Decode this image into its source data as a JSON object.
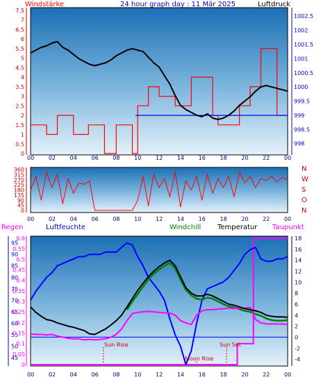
{
  "header": {
    "left": "Windstärke",
    "center": "24 hour graph day : 11 Mär 2025",
    "right": "Luftdruck"
  },
  "x_ticks": [
    "00",
    "02",
    "04",
    "06",
    "08",
    "10",
    "12",
    "14",
    "16",
    "18",
    "20",
    "22",
    "00"
  ],
  "colors": {
    "wind": "#ff0000",
    "gust": "#0000ff",
    "pressure": "#000000",
    "temperature": "#000000",
    "humidity": "#0000ff",
    "dewpoint": "#ff00ff",
    "windchill": "#008000",
    "rain": "#ff00ff",
    "sunline": "#0000ff",
    "axis_blue": "#0000cc",
    "axis_red": "#cc0000"
  },
  "chart_data": [
    {
      "name": "wind_pressure",
      "type": "line",
      "x_hours": [
        0,
        24
      ],
      "left_axis": {
        "label": "Windstärke",
        "ticks": [
          "0",
          "0.5",
          "1",
          "1.5",
          "2",
          "2.5",
          "3",
          "3.5",
          "4",
          "4.5",
          "5",
          "5.5",
          "6",
          "6.5",
          "7",
          "7.5"
        ],
        "ylim": [
          0,
          7.5
        ]
      },
      "right_axis": {
        "label": "Luftdruck",
        "ticks": [
          "998",
          "998.5",
          "999",
          "999.5",
          "1000",
          "1000.5",
          "1001",
          "1001.5",
          "1002",
          "1002.5"
        ],
        "ylim": [
          997.6,
          1002.8
        ]
      },
      "pressure": {
        "x": [
          0,
          0.5,
          1,
          1.5,
          2,
          2.5,
          3,
          3.5,
          4,
          4.5,
          5,
          5.5,
          6,
          6.5,
          7,
          7.5,
          8,
          8.5,
          9,
          9.5,
          10,
          10.5,
          11,
          11.5,
          12,
          12.5,
          13,
          13.5,
          14,
          14.5,
          15,
          15.5,
          16,
          16.5,
          17,
          17.5,
          18,
          18.5,
          19,
          19.5,
          20,
          20.5,
          21,
          21.5,
          22,
          22.5,
          23,
          23.5,
          24
        ],
        "y": [
          1001.2,
          1001.3,
          1001.4,
          1001.45,
          1001.55,
          1001.6,
          1001.4,
          1001.3,
          1001.15,
          1001.0,
          1000.9,
          1000.8,
          1000.75,
          1000.8,
          1000.85,
          1000.95,
          1001.1,
          1001.2,
          1001.3,
          1001.35,
          1001.3,
          1001.25,
          1001.05,
          1000.85,
          1000.7,
          1000.4,
          1000.1,
          999.7,
          999.35,
          999.2,
          999.1,
          999.0,
          998.95,
          999.05,
          998.9,
          998.85,
          998.9,
          999.0,
          999.15,
          999.35,
          999.5,
          999.65,
          999.85,
          1000.0,
          1000.05,
          1000.0,
          999.95,
          999.9,
          999.85
        ]
      },
      "wind_steps": {
        "x": [
          0,
          1.5,
          2.5,
          4,
          5.4,
          6.9,
          8,
          9.5,
          10,
          11,
          12,
          13.5,
          15,
          17,
          17.5,
          18.5,
          19.5,
          20.5,
          21.5,
          23
        ],
        "y": [
          1.5,
          1,
          2,
          1,
          1.5,
          0,
          1.5,
          0,
          2.5,
          3.5,
          3,
          2.5,
          4,
          2,
          1.5,
          1.5,
          2.5,
          3.5,
          5.5,
          2
        ]
      },
      "gust_steps": {
        "x": [
          9.8,
          24
        ],
        "y": [
          2,
          2
        ]
      }
    },
    {
      "name": "wind_direction",
      "type": "line",
      "left_axis": {
        "ticks": [
          "0",
          "45",
          "90",
          "135",
          "180",
          "225",
          "270",
          "315",
          "360"
        ],
        "ylim": [
          0,
          360
        ]
      },
      "right_axis": {
        "ticks": [
          "N",
          "W",
          "S",
          "O",
          "N"
        ]
      },
      "direction": {
        "x": [
          0,
          0.5,
          1,
          1.5,
          2,
          2.5,
          3,
          3.5,
          4,
          4.5,
          5,
          5.5,
          6,
          6.5,
          7,
          7.5,
          8,
          8.5,
          9,
          9.5,
          10,
          10.5,
          11,
          11.5,
          12,
          12.5,
          13,
          13.5,
          14,
          14.5,
          15,
          15.5,
          16,
          16.5,
          17,
          17.5,
          18,
          18.5,
          19,
          19.5,
          20,
          20.5,
          21,
          21.5,
          22,
          22.5,
          23,
          23.5,
          24
        ],
        "y": [
          180,
          300,
          90,
          340,
          200,
          320,
          60,
          280,
          150,
          240,
          230,
          260,
          0,
          0,
          0,
          0,
          0,
          0,
          0,
          0,
          90,
          300,
          40,
          320,
          200,
          280,
          120,
          340,
          30,
          260,
          180,
          300,
          90,
          320,
          150,
          280,
          200,
          300,
          120,
          340,
          240,
          300,
          200,
          280,
          260,
          300,
          250,
          290,
          270
        ]
      }
    },
    {
      "name": "temperature_humidity",
      "type": "line",
      "header_labels": {
        "rain": "Regen",
        "humidity": "Luftfeuchte",
        "windchill": "Windchill",
        "temperature": "Temperatur",
        "dewpoint": "Taupunkt"
      },
      "humidity_axis": {
        "ticks": [
          "45",
          "50",
          "55",
          "60",
          "65",
          "70",
          "75",
          "80",
          "85",
          "90",
          "95"
        ],
        "ylim": [
          42,
          97
        ]
      },
      "rain_axis": {
        "ticks": [
          "0",
          "0.05",
          "0.1",
          "0.15",
          "0.2",
          "0.25",
          "0.3",
          "0.35",
          "0.4",
          "0.45",
          "0.5",
          "0.55",
          "0.6"
        ],
        "ylim": [
          0,
          0.6
        ]
      },
      "temp_axis": {
        "ticks": [
          "-4",
          "-2",
          "0",
          "2",
          "4",
          "6",
          "8",
          "10",
          "12",
          "14",
          "16",
          "18"
        ],
        "ylim": [
          -5,
          18
        ]
      },
      "annotations": [
        "Sun Rise",
        "Moon Rise",
        "Sun Set"
      ],
      "humidity": {
        "x": [
          0,
          0.5,
          1,
          1.5,
          2,
          2.5,
          3,
          3.5,
          4,
          4.5,
          5,
          5.5,
          6,
          6.5,
          7,
          7.5,
          8,
          8.5,
          9,
          9.5,
          10,
          10.5,
          11,
          11.5,
          12,
          12.5,
          13,
          13.5,
          14,
          14.5,
          15,
          15.5,
          16,
          16.5,
          17,
          17.5,
          18,
          18.5,
          19,
          19.5,
          20,
          20.5,
          21,
          21.5,
          22,
          22.5,
          23,
          23.5,
          24
        ],
        "y": [
          70,
          74,
          77,
          80,
          82,
          85,
          86,
          87,
          88,
          89,
          89,
          90,
          90,
          90,
          91,
          91,
          91,
          93,
          95,
          94,
          89,
          85,
          80,
          77,
          74,
          70,
          62,
          55,
          50,
          42,
          48,
          60,
          70,
          75,
          76,
          77,
          78,
          80,
          83,
          86,
          90,
          92,
          93,
          88,
          87,
          87,
          88,
          88,
          89
        ]
      },
      "temperature": {
        "x": [
          0,
          0.5,
          1,
          1.5,
          2,
          2.5,
          3,
          3.5,
          4,
          4.5,
          5,
          5.5,
          6,
          6.5,
          7,
          7.5,
          8,
          8.5,
          9,
          9.5,
          10,
          10.5,
          11,
          11.5,
          12,
          12.5,
          13,
          13.5,
          14,
          14.5,
          15,
          15.5,
          16,
          16.5,
          17,
          17.5,
          18,
          18.5,
          19,
          19.5,
          20,
          20.5,
          21,
          21.5,
          22,
          22.5,
          23,
          23.5,
          24
        ],
        "y": [
          5.5,
          4.5,
          3.8,
          3.2,
          3.0,
          2.6,
          2.3,
          2.0,
          1.8,
          1.5,
          1.2,
          0.6,
          0.5,
          1.0,
          1.5,
          2.2,
          3.0,
          4.0,
          5.5,
          7.0,
          8.5,
          9.8,
          11.0,
          12.0,
          12.8,
          13.5,
          14.0,
          13.0,
          11.0,
          9.0,
          8.0,
          7.5,
          7.5,
          7.8,
          7.5,
          7.0,
          6.5,
          6.0,
          5.8,
          5.5,
          5.2,
          5.0,
          4.8,
          4.5,
          4.0,
          3.8,
          3.7,
          3.7,
          3.6
        ]
      },
      "dewpoint": {
        "x": [
          0,
          0.5,
          1,
          1.5,
          2,
          2.5,
          3,
          3.5,
          4,
          4.5,
          5,
          5.5,
          6,
          6.5,
          7,
          7.5,
          8,
          8.5,
          9,
          9.5,
          10,
          10.5,
          11,
          11.5,
          12,
          12.5,
          13,
          13.5,
          14,
          14.5,
          15,
          15.5,
          16,
          16.5,
          17,
          17.5,
          18,
          18.5,
          19,
          19.5,
          20,
          20.5,
          21,
          21.5,
          22,
          22.5,
          23,
          23.5,
          24
        ],
        "y": [
          0.6,
          0.5,
          0.5,
          0.4,
          0.5,
          0.2,
          0.0,
          -0.2,
          -0.3,
          -0.3,
          -0.5,
          -0.4,
          -0.5,
          -0.4,
          -0.3,
          0.0,
          0.5,
          1.5,
          3.0,
          4.3,
          4.5,
          4.6,
          4.7,
          4.6,
          4.5,
          4.4,
          4.4,
          4.0,
          3.0,
          2.6,
          2.3,
          4.0,
          4.8,
          5.0,
          5.0,
          5.1,
          5.2,
          5.3,
          5.2,
          5.3,
          5.3,
          5.4,
          3.2,
          2.6,
          2.4,
          2.4,
          2.4,
          2.4,
          2.3
        ]
      },
      "windchill": {
        "x": [
          9,
          9.5,
          10,
          10.5,
          11,
          11.5,
          12,
          12.5,
          13,
          13.5,
          14,
          14.5,
          15,
          15.5,
          16,
          16.5,
          17,
          17.5,
          18,
          18.5,
          19,
          19.5,
          20,
          20.5,
          21,
          21.5,
          22,
          22.5,
          23,
          23.5,
          24
        ],
        "y": [
          5.0,
          6.5,
          7.8,
          9.2,
          10.5,
          11.5,
          12.3,
          13.0,
          13.5,
          12.5,
          10.5,
          8.6,
          7.6,
          7.0,
          6.8,
          7.2,
          7.0,
          6.5,
          6.0,
          5.6,
          5.4,
          5.1,
          4.8,
          4.6,
          4.2,
          3.9,
          3.4,
          3.1,
          3.0,
          3.0,
          3.1
        ]
      },
      "rain_total": {
        "x": [
          0,
          19.3,
          19.3,
          20.8,
          20.8,
          24
        ],
        "y": [
          0,
          0,
          0.1,
          0.1,
          0.6,
          0.6
        ]
      }
    }
  ]
}
